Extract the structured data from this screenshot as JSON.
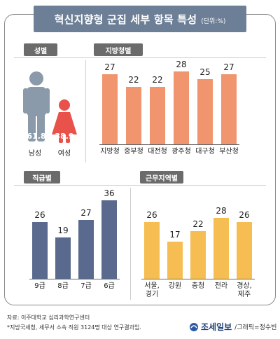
{
  "title": "혁신지향형 군집 세부 항목 특성",
  "unit": "(단위:%)",
  "sections": {
    "gender": "성별",
    "region": "지방청별",
    "rank": "직급별",
    "area": "근무지역별"
  },
  "colors": {
    "male": "#8a9aaa",
    "female": "#e8524a",
    "region_bar": "#f0956d",
    "rank_bar": "#5a6a8e",
    "area_bar": "#f6be52",
    "title_bg": "#6d7f96"
  },
  "chart_data": [
    {
      "type": "bar",
      "section": "성별",
      "categories": [
        "남성",
        "여성"
      ],
      "values": [
        61.8,
        38.9
      ],
      "value_labels": [
        "61.8",
        "38.9"
      ]
    },
    {
      "type": "bar",
      "section": "지방청별",
      "categories": [
        "지방청",
        "중부청",
        "대전청",
        "광주청",
        "대구청",
        "부산청"
      ],
      "values": [
        27,
        22,
        22,
        28,
        25,
        27
      ],
      "ylim": [
        0,
        36
      ]
    },
    {
      "type": "bar",
      "section": "직급별",
      "categories": [
        "9급",
        "8급",
        "7급",
        "6급"
      ],
      "values": [
        26,
        19,
        27,
        36
      ],
      "ylim": [
        0,
        36
      ]
    },
    {
      "type": "bar",
      "section": "근무지역별",
      "categories": [
        [
          "서울,",
          "경기"
        ],
        [
          "강원"
        ],
        [
          "충청"
        ],
        [
          "전라"
        ],
        [
          "경상,",
          "제주"
        ]
      ],
      "values": [
        26,
        17,
        22,
        28,
        26
      ],
      "ylim": [
        0,
        36
      ]
    }
  ],
  "footer": {
    "source": "자료: 이주대학교 심리과학연구센터",
    "note": "*지방국세청, 세무서 소속 직원 3124명 대상 연구결과임.",
    "brand": "조세일보",
    "credit": "/그래픽=정수빈"
  }
}
